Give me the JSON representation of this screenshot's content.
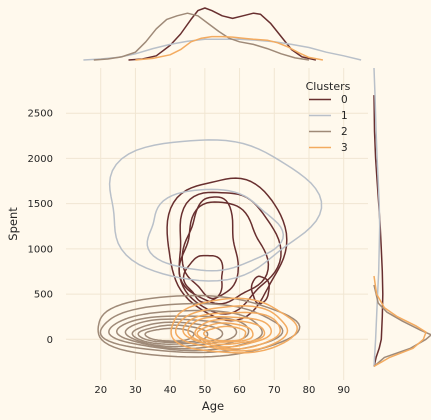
{
  "chart_data": {
    "type": "joint-kde",
    "xlabel": "Age",
    "ylabel": "Spent",
    "xlim": [
      10,
      97
    ],
    "ylim": [
      -450,
      3000
    ],
    "xticks": [
      20,
      30,
      40,
      50,
      60,
      70,
      80,
      90
    ],
    "yticks": [
      0,
      500,
      1000,
      1500,
      2000,
      2500
    ],
    "grid": true,
    "legend": {
      "title": "Clusters",
      "placement": "top-right",
      "entries": [
        "0",
        "1",
        "2",
        "3"
      ]
    },
    "series": [
      {
        "label": "0",
        "color": "#682F2F",
        "marginal_x": [
          [
            28,
            0
          ],
          [
            32,
            0.02
          ],
          [
            36,
            0.08
          ],
          [
            40,
            0.28
          ],
          [
            43,
            0.5
          ],
          [
            46,
            0.78
          ],
          [
            48,
            0.95
          ],
          [
            50,
            1.0
          ],
          [
            52,
            0.95
          ],
          [
            55,
            0.85
          ],
          [
            58,
            0.8
          ],
          [
            61,
            0.85
          ],
          [
            64,
            0.9
          ],
          [
            66,
            0.88
          ],
          [
            69,
            0.7
          ],
          [
            72,
            0.45
          ],
          [
            75,
            0.2
          ],
          [
            78,
            0.06
          ],
          [
            82,
            0
          ]
        ],
        "marginal_y": [
          [
            -300,
            0
          ],
          [
            -200,
            0.04
          ],
          [
            -100,
            0.1
          ],
          [
            0,
            0.14
          ],
          [
            250,
            0.16
          ],
          [
            500,
            0.17
          ],
          [
            750,
            0.16
          ],
          [
            1000,
            0.14
          ],
          [
            1250,
            0.12
          ],
          [
            1500,
            0.09
          ],
          [
            1750,
            0.06
          ],
          [
            2000,
            0.03
          ],
          [
            2300,
            0.01
          ],
          [
            2700,
            0
          ]
        ],
        "contours": [
          {
            "cx": 56,
            "cy": 1030,
            "rx": 17,
            "ry": 780,
            "wave": 0.05
          },
          {
            "cx": 56,
            "cy": 980,
            "rx": 14.5,
            "ry": 670,
            "wave": 0.07
          },
          {
            "cx": 55,
            "cy": 940,
            "rx": 12,
            "ry": 560,
            "wave": 0.09
          },
          {
            "cx": 52,
            "cy": 1000,
            "rx": 7.5,
            "ry": 560,
            "wave": 0.1
          },
          {
            "cx": 50,
            "cy": 680,
            "rx": 5.5,
            "ry": 260,
            "wave": 0.08
          },
          {
            "cx": 66,
            "cy": 550,
            "rx": 2.5,
            "ry": 150,
            "wave": 0.05
          }
        ]
      },
      {
        "label": "1",
        "color": "#B9C0C9",
        "marginal_x": [
          [
            15,
            0
          ],
          [
            20,
            0.02
          ],
          [
            25,
            0.05
          ],
          [
            30,
            0.12
          ],
          [
            35,
            0.22
          ],
          [
            40,
            0.3
          ],
          [
            45,
            0.36
          ],
          [
            50,
            0.4
          ],
          [
            55,
            0.4
          ],
          [
            60,
            0.4
          ],
          [
            65,
            0.38
          ],
          [
            70,
            0.35
          ],
          [
            75,
            0.3
          ],
          [
            80,
            0.24
          ],
          [
            85,
            0.15
          ],
          [
            90,
            0.08
          ],
          [
            95,
            0
          ]
        ],
        "marginal_y": [
          [
            -300,
            0
          ],
          [
            0,
            0.03
          ],
          [
            250,
            0.05
          ],
          [
            500,
            0.07
          ],
          [
            750,
            0.09
          ],
          [
            1000,
            0.1
          ],
          [
            1250,
            0.11
          ],
          [
            1500,
            0.1
          ],
          [
            1750,
            0.08
          ],
          [
            2000,
            0.06
          ],
          [
            2300,
            0.04
          ],
          [
            2700,
            0.02
          ],
          [
            3000,
            0
          ]
        ],
        "contours": [
          {
            "cx": 51,
            "cy": 1450,
            "rx": 30,
            "ry": 780,
            "wave": 0.06
          },
          {
            "cx": 52,
            "cy": 1200,
            "rx": 19,
            "ry": 450,
            "wave": 0.06
          }
        ]
      },
      {
        "label": "2",
        "color": "#9F8A78",
        "marginal_x": [
          [
            18,
            0
          ],
          [
            22,
            0.02
          ],
          [
            26,
            0.06
          ],
          [
            30,
            0.15
          ],
          [
            33,
            0.35
          ],
          [
            36,
            0.6
          ],
          [
            39,
            0.78
          ],
          [
            42,
            0.85
          ],
          [
            45,
            0.9
          ],
          [
            48,
            0.85
          ],
          [
            51,
            0.7
          ],
          [
            54,
            0.55
          ],
          [
            57,
            0.42
          ],
          [
            60,
            0.35
          ],
          [
            64,
            0.3
          ],
          [
            68,
            0.22
          ],
          [
            72,
            0.12
          ],
          [
            76,
            0.04
          ],
          [
            80,
            0
          ]
        ],
        "marginal_y": [
          [
            -300,
            0
          ],
          [
            -200,
            0.2
          ],
          [
            -100,
            0.7
          ],
          [
            0,
            1.0
          ],
          [
            50,
            1.1
          ],
          [
            100,
            0.9
          ],
          [
            200,
            0.55
          ],
          [
            300,
            0.25
          ],
          [
            400,
            0.08
          ],
          [
            600,
            0
          ]
        ],
        "contours": [
          {
            "cx": 47,
            "cy": 140,
            "rx": 29,
            "ry": 340,
            "wave": 0.03
          },
          {
            "cx": 46,
            "cy": 120,
            "rx": 26,
            "ry": 270,
            "wave": 0.03
          },
          {
            "cx": 45,
            "cy": 100,
            "rx": 22,
            "ry": 220,
            "wave": 0.03
          },
          {
            "cx": 44,
            "cy": 85,
            "rx": 19,
            "ry": 180,
            "wave": 0.03
          },
          {
            "cx": 43,
            "cy": 75,
            "rx": 16,
            "ry": 150,
            "wave": 0.03
          },
          {
            "cx": 42,
            "cy": 65,
            "rx": 13,
            "ry": 120,
            "wave": 0.03
          },
          {
            "cx": 41,
            "cy": 58,
            "rx": 10,
            "ry": 95,
            "wave": 0.03
          },
          {
            "cx": 40,
            "cy": 50,
            "rx": 7,
            "ry": 70,
            "wave": 0.03
          }
        ]
      },
      {
        "label": "3",
        "color": "#F3AB60",
        "marginal_x": [
          [
            30,
            0
          ],
          [
            35,
            0.03
          ],
          [
            40,
            0.1
          ],
          [
            43,
            0.2
          ],
          [
            46,
            0.35
          ],
          [
            49,
            0.42
          ],
          [
            52,
            0.45
          ],
          [
            55,
            0.45
          ],
          [
            58,
            0.44
          ],
          [
            61,
            0.42
          ],
          [
            64,
            0.4
          ],
          [
            68,
            0.38
          ],
          [
            71,
            0.33
          ],
          [
            74,
            0.25
          ],
          [
            77,
            0.14
          ],
          [
            80,
            0.05
          ],
          [
            84,
            0
          ]
        ],
        "marginal_y": [
          [
            -300,
            0
          ],
          [
            -200,
            0.3
          ],
          [
            -100,
            0.75
          ],
          [
            0,
            0.95
          ],
          [
            80,
            1.0
          ],
          [
            150,
            0.8
          ],
          [
            250,
            0.45
          ],
          [
            350,
            0.2
          ],
          [
            500,
            0.05
          ],
          [
            700,
            0
          ]
        ],
        "contours": [
          {
            "cx": 58,
            "cy": 140,
            "rx": 18,
            "ry": 300,
            "wave": 0.04
          },
          {
            "cx": 58,
            "cy": 120,
            "rx": 16,
            "ry": 245,
            "wave": 0.04
          },
          {
            "cx": 58,
            "cy": 105,
            "rx": 14,
            "ry": 200,
            "wave": 0.04
          },
          {
            "cx": 57,
            "cy": 90,
            "rx": 12,
            "ry": 165,
            "wave": 0.04
          },
          {
            "cx": 57,
            "cy": 80,
            "rx": 10,
            "ry": 135,
            "wave": 0.04
          },
          {
            "cx": 56,
            "cy": 70,
            "rx": 8,
            "ry": 105,
            "wave": 0.04
          },
          {
            "cx": 56,
            "cy": 60,
            "rx": 6,
            "ry": 80,
            "wave": 0.04
          }
        ]
      }
    ]
  }
}
